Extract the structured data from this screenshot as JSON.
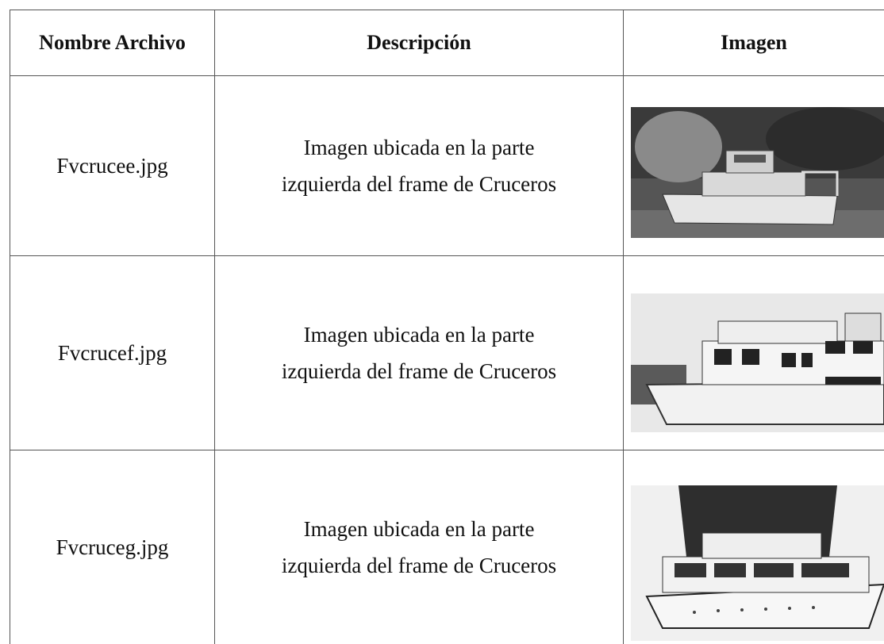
{
  "table": {
    "headers": [
      "Nombre Archivo",
      "Descripción",
      "Imagen"
    ],
    "rows": [
      {
        "file": "Fvcrucee.jpg",
        "description": [
          "Imagen ubicada en la parte",
          "izquierda del frame de Cruceros"
        ]
      },
      {
        "file": "Fvcrucef.jpg",
        "description": [
          "Imagen ubicada en la parte",
          "izquierda del frame de Cruceros"
        ]
      },
      {
        "file": "Fvcruceg.jpg",
        "description": [
          "Imagen ubicada en la parte",
          "izquierda del frame de Cruceros"
        ]
      }
    ]
  }
}
